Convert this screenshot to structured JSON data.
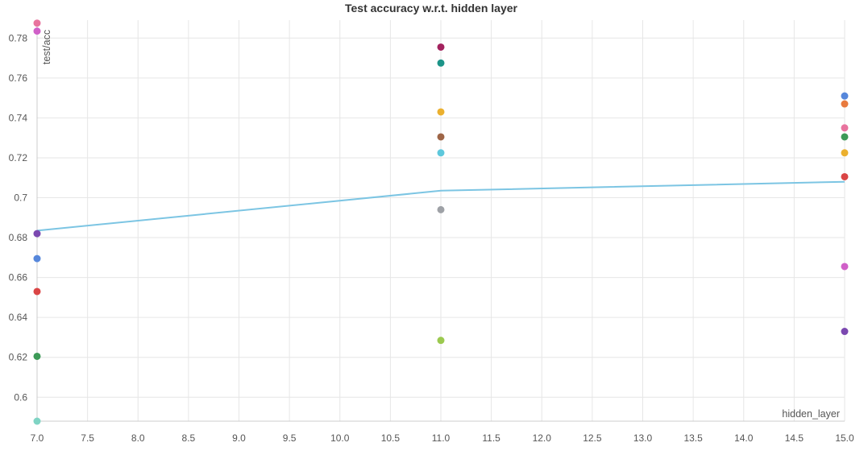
{
  "chart_data": {
    "type": "scatter",
    "title": "Test accuracy w.r.t. hidden layer",
    "xlabel": "hidden_layer",
    "ylabel": "test/acc",
    "xlim": [
      7.0,
      15.0
    ],
    "ylim": [
      0.588,
      0.789
    ],
    "x_ticks": [
      "7.0",
      "7.5",
      "8.0",
      "8.5",
      "9.0",
      "9.5",
      "10.0",
      "10.5",
      "11.0",
      "11.5",
      "12.0",
      "12.5",
      "13.0",
      "13.5",
      "14.0",
      "14.5",
      "15.0"
    ],
    "y_ticks": [
      "0.6",
      "0.62",
      "0.64",
      "0.66",
      "0.68",
      "0.7",
      "0.72",
      "0.74",
      "0.76",
      "0.78"
    ],
    "grid": true,
    "points": [
      {
        "x": 7,
        "y": 0.7875,
        "color": "#e8739e"
      },
      {
        "x": 7,
        "y": 0.7835,
        "color": "#d060c8"
      },
      {
        "x": 7,
        "y": 0.682,
        "color": "#7b48b0"
      },
      {
        "x": 7,
        "y": 0.6695,
        "color": "#5687db"
      },
      {
        "x": 7,
        "y": 0.653,
        "color": "#da4545"
      },
      {
        "x": 7,
        "y": 0.6205,
        "color": "#3d9a57"
      },
      {
        "x": 7,
        "y": 0.588,
        "color": "#7fd4c4"
      },
      {
        "x": 11,
        "y": 0.7755,
        "color": "#a3225e"
      },
      {
        "x": 11,
        "y": 0.7675,
        "color": "#1c9488"
      },
      {
        "x": 11,
        "y": 0.743,
        "color": "#ebb02e"
      },
      {
        "x": 11,
        "y": 0.7305,
        "color": "#9e6547"
      },
      {
        "x": 11,
        "y": 0.7225,
        "color": "#5ec8dc"
      },
      {
        "x": 11,
        "y": 0.694,
        "color": "#9ea1a6"
      },
      {
        "x": 11,
        "y": 0.6285,
        "color": "#9bc94f"
      },
      {
        "x": 15,
        "y": 0.751,
        "color": "#5687db"
      },
      {
        "x": 15,
        "y": 0.747,
        "color": "#e87a3e"
      },
      {
        "x": 15,
        "y": 0.735,
        "color": "#e8739e"
      },
      {
        "x": 15,
        "y": 0.7305,
        "color": "#3d9a57"
      },
      {
        "x": 15,
        "y": 0.7225,
        "color": "#ebb02e"
      },
      {
        "x": 15,
        "y": 0.7105,
        "color": "#da4545"
      },
      {
        "x": 15,
        "y": 0.6655,
        "color": "#d060c8"
      },
      {
        "x": 15,
        "y": 0.633,
        "color": "#7b48b0"
      }
    ],
    "trend_line": {
      "color": "#7cc5e3",
      "x": [
        7,
        11,
        15
      ],
      "y": [
        0.6835,
        0.7035,
        0.708
      ]
    }
  },
  "colors": {
    "grid": "#e6e6e6",
    "axis": "#cccccc"
  }
}
